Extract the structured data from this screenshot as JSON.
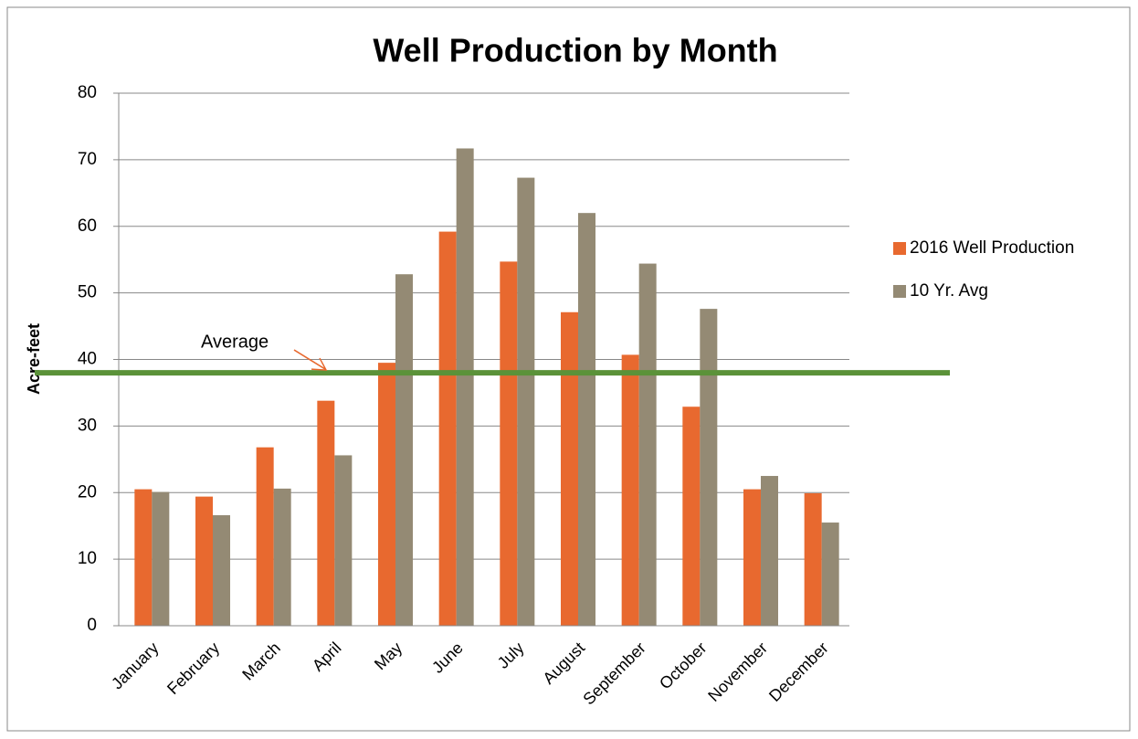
{
  "chart_data": {
    "type": "bar",
    "title": "Well Production by Month",
    "y_axis_label": "Acre-feet",
    "categories": [
      "January",
      "February",
      "March",
      "April",
      "May",
      "June",
      "July",
      "August",
      "September",
      "October",
      "November",
      "December"
    ],
    "series": [
      {
        "name": "2016 Well Production",
        "color": "#e8692f",
        "values": [
          20.5,
          19.4,
          26.8,
          33.8,
          39.5,
          59.2,
          54.7,
          47.1,
          40.7,
          32.9,
          20.5,
          19.9
        ]
      },
      {
        "name": "10 Yr. Avg",
        "color": "#948a74",
        "values": [
          20.1,
          16.6,
          20.6,
          25.6,
          52.8,
          71.7,
          67.3,
          62.0,
          54.4,
          47.6,
          22.5,
          15.5
        ]
      }
    ],
    "ylim": [
      0,
      80
    ],
    "yticks": [
      0,
      10,
      20,
      30,
      40,
      50,
      60,
      70,
      80
    ],
    "grid": true,
    "legend": "right",
    "average_line": {
      "label": "Average",
      "value": 38,
      "color": "#5b9239",
      "arrow_color": "#e8692f"
    }
  }
}
